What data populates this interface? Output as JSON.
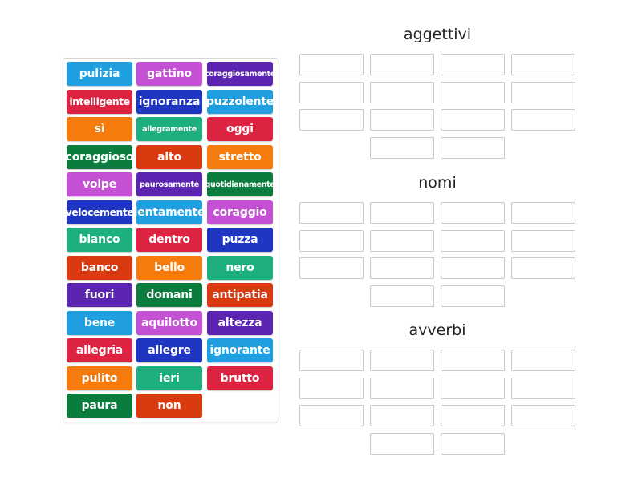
{
  "colors": {
    "light_blue": "#1f9fe0",
    "magenta": "#c450d4",
    "purple": "#5c25b1",
    "red": "#dc2442",
    "dark_blue": "#1e36c2",
    "orange": "#f57c0c",
    "teal": "#1daf7f",
    "green": "#0a7c3d",
    "red_orange": "#d93a10"
  },
  "tiles": [
    {
      "label": "pulizia",
      "color": "light_blue"
    },
    {
      "label": "gattino",
      "color": "magenta"
    },
    {
      "label": "coraggiosamente",
      "color": "purple",
      "size": "xs"
    },
    {
      "label": "intelligente",
      "color": "red",
      "size": "s"
    },
    {
      "label": "ignoranza",
      "color": "dark_blue"
    },
    {
      "label": "puzzolente",
      "color": "light_blue"
    },
    {
      "label": "sì",
      "color": "orange"
    },
    {
      "label": "allegramente",
      "color": "teal",
      "size": "xs"
    },
    {
      "label": "oggi",
      "color": "red"
    },
    {
      "label": "coraggioso",
      "color": "green"
    },
    {
      "label": "alto",
      "color": "red_orange"
    },
    {
      "label": "stretto",
      "color": "orange"
    },
    {
      "label": "volpe",
      "color": "magenta"
    },
    {
      "label": "paurosamente",
      "color": "purple",
      "size": "xs"
    },
    {
      "label": "quotidianamente",
      "color": "green",
      "size": "xs"
    },
    {
      "label": "velocemente",
      "color": "dark_blue",
      "size": "s"
    },
    {
      "label": "lentamente",
      "color": "light_blue"
    },
    {
      "label": "coraggio",
      "color": "magenta"
    },
    {
      "label": "bianco",
      "color": "teal"
    },
    {
      "label": "dentro",
      "color": "red"
    },
    {
      "label": "puzza",
      "color": "dark_blue"
    },
    {
      "label": "banco",
      "color": "red_orange"
    },
    {
      "label": "bello",
      "color": "orange"
    },
    {
      "label": "nero",
      "color": "teal"
    },
    {
      "label": "fuori",
      "color": "purple"
    },
    {
      "label": "domani",
      "color": "green"
    },
    {
      "label": "antipatia",
      "color": "red_orange"
    },
    {
      "label": "bene",
      "color": "light_blue"
    },
    {
      "label": "aquilotto",
      "color": "magenta"
    },
    {
      "label": "altezza",
      "color": "purple"
    },
    {
      "label": "allegria",
      "color": "red"
    },
    {
      "label": "allegre",
      "color": "dark_blue"
    },
    {
      "label": "ignorante",
      "color": "light_blue"
    },
    {
      "label": "pulito",
      "color": "orange"
    },
    {
      "label": "ieri",
      "color": "teal"
    },
    {
      "label": "brutto",
      "color": "red"
    },
    {
      "label": "paura",
      "color": "green"
    },
    {
      "label": "non",
      "color": "red_orange"
    }
  ],
  "groups": [
    {
      "title": "aggettivi"
    },
    {
      "title": "nomi"
    },
    {
      "title": "avverbi"
    }
  ]
}
